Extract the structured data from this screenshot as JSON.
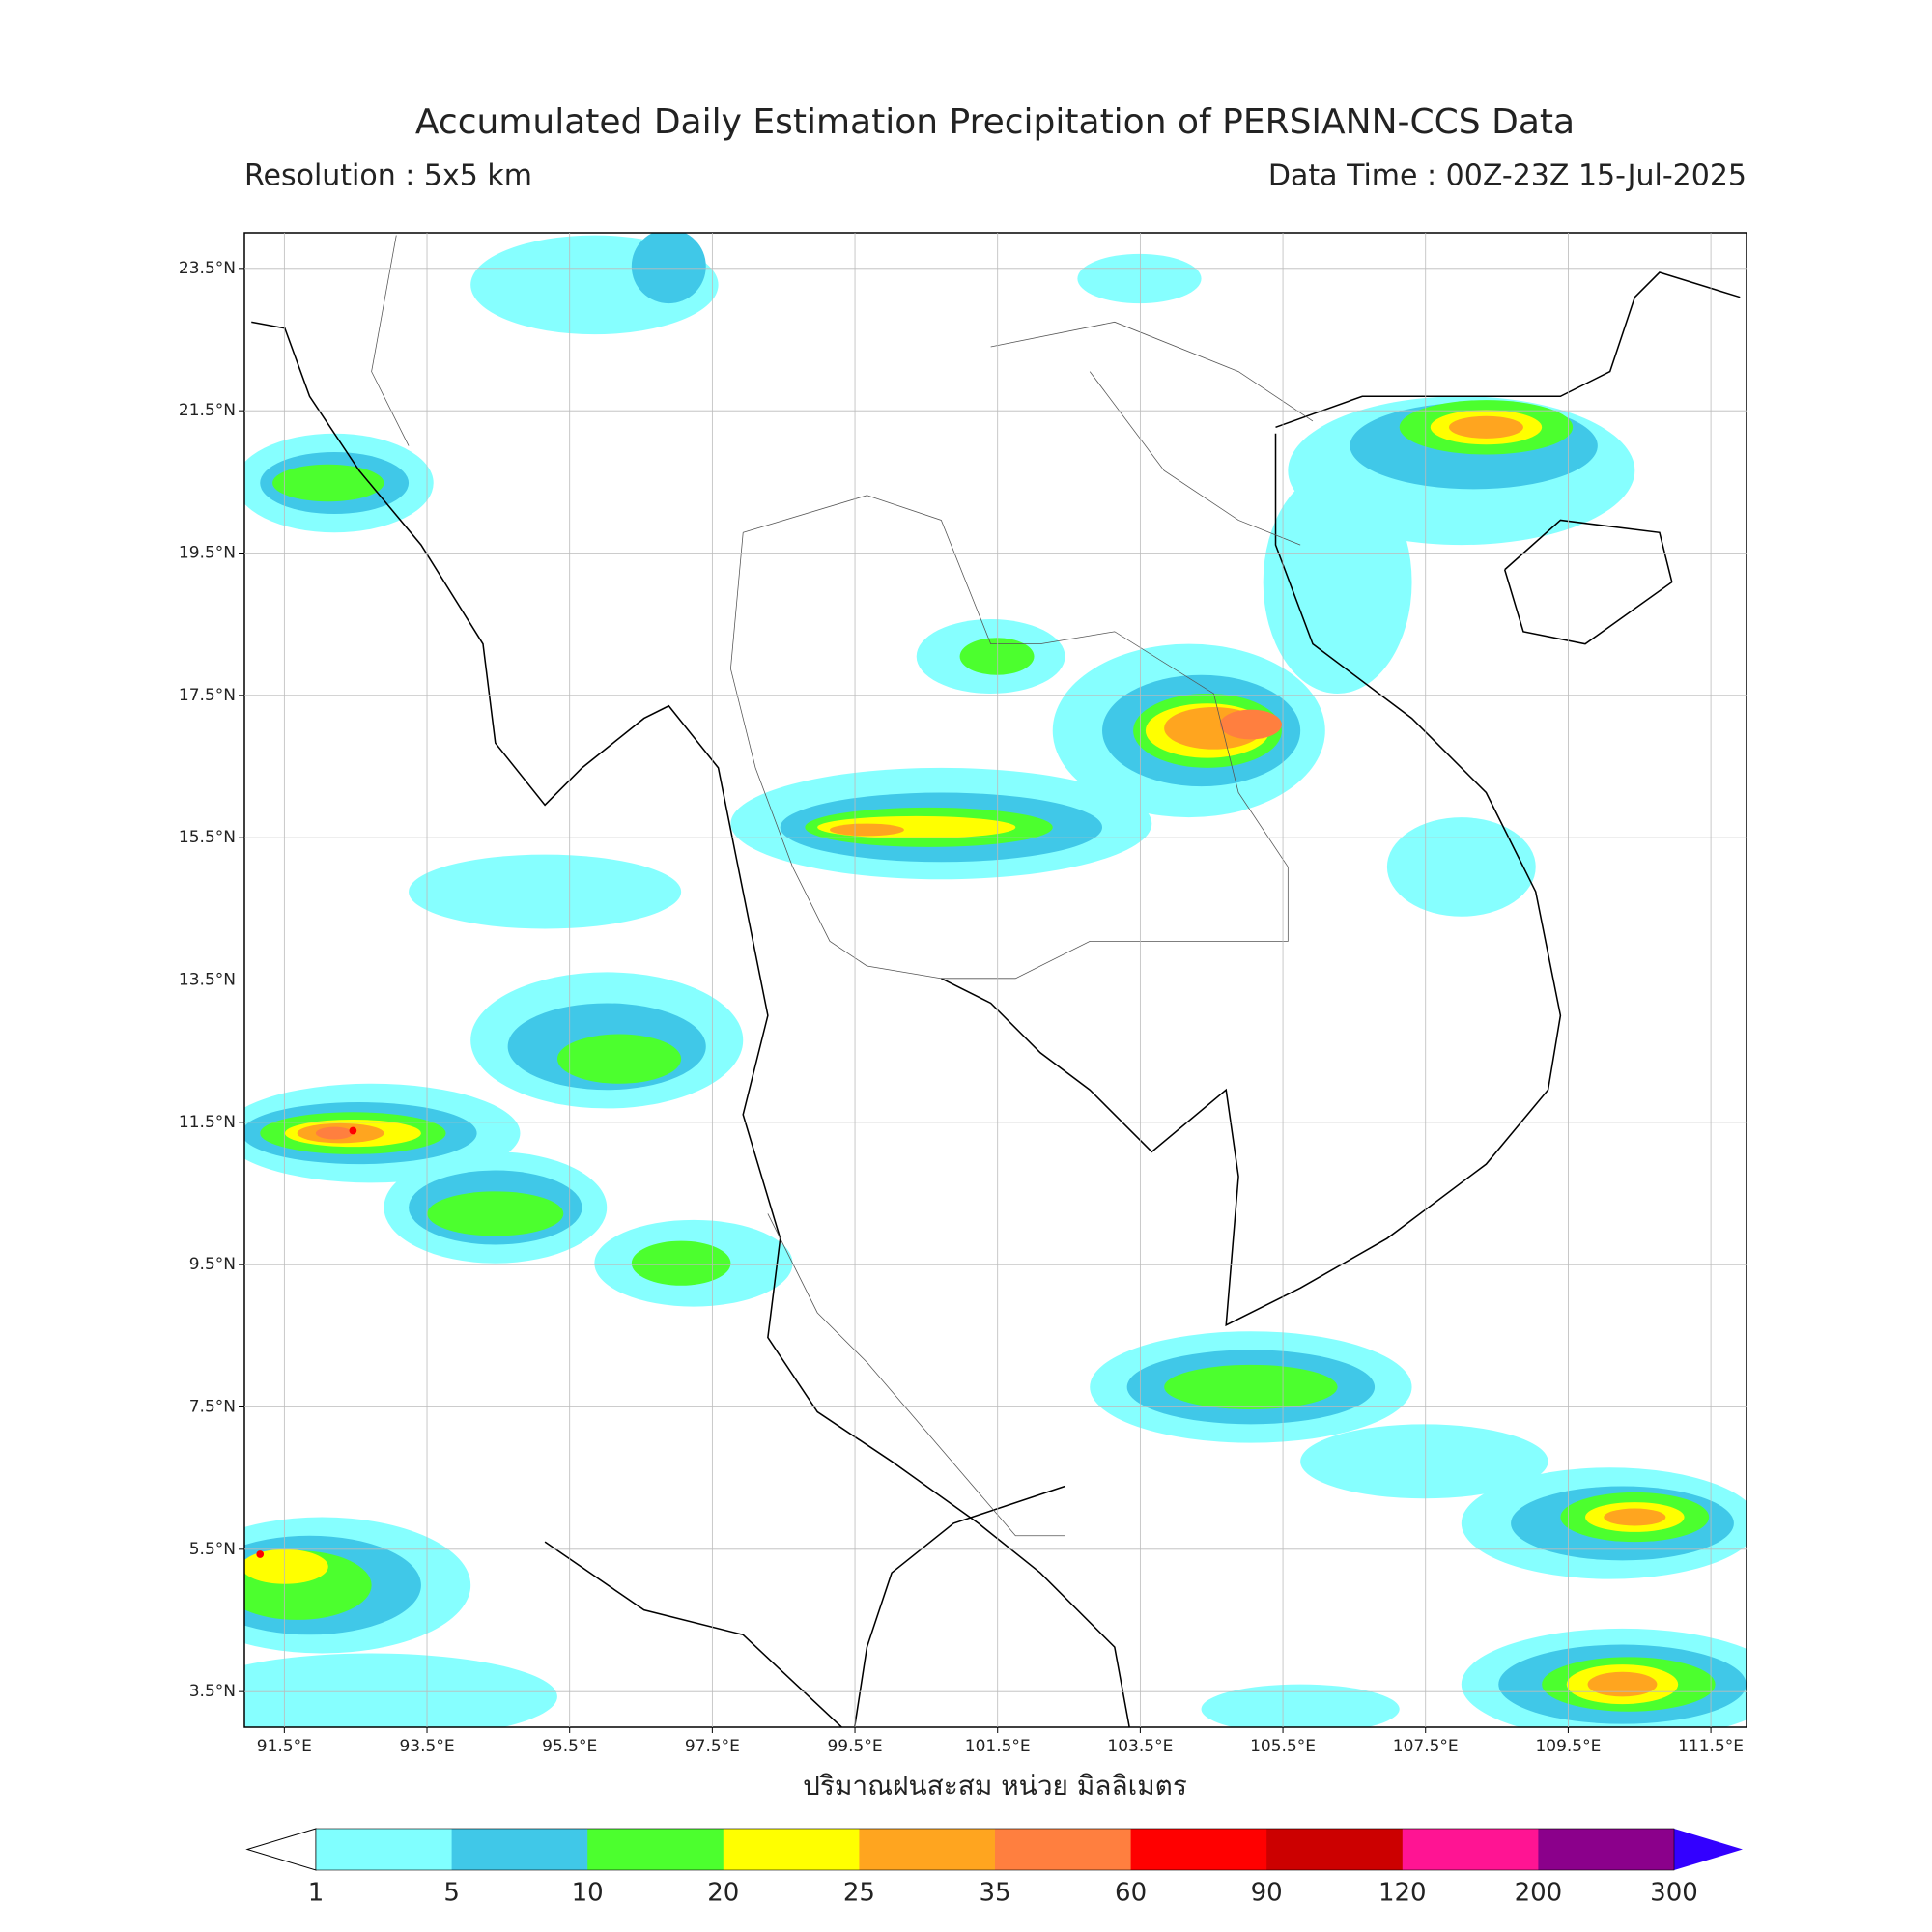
{
  "title": "Accumulated Daily Estimation Precipitation of PERSIANN-CCS Data",
  "resolution": "Resolution : 5x5 km",
  "data_time": "Data Time : 00Z-23Z 15-Jul-2025",
  "map": {
    "xlim": [
      90.94,
      112.0
    ],
    "ylim": [
      3.0,
      24.0
    ],
    "xticks": [
      {
        "value": 91.5,
        "label": "91.5°E"
      },
      {
        "value": 93.5,
        "label": "93.5°E"
      },
      {
        "value": 95.5,
        "label": "95.5°E"
      },
      {
        "value": 97.5,
        "label": "97.5°E"
      },
      {
        "value": 99.5,
        "label": "99.5°E"
      },
      {
        "value": 101.5,
        "label": "101.5°E"
      },
      {
        "value": 103.5,
        "label": "103.5°E"
      },
      {
        "value": 105.5,
        "label": "105.5°E"
      },
      {
        "value": 107.5,
        "label": "107.5°E"
      },
      {
        "value": 109.5,
        "label": "109.5°E"
      },
      {
        "value": 111.5,
        "label": "111.5°E"
      }
    ],
    "yticks": [
      {
        "value": 3.5,
        "label": "3.5°N"
      },
      {
        "value": 5.5,
        "label": "5.5°N"
      },
      {
        "value": 7.5,
        "label": "7.5°N"
      },
      {
        "value": 9.5,
        "label": "9.5°N"
      },
      {
        "value": 11.5,
        "label": "11.5°N"
      },
      {
        "value": 13.5,
        "label": "13.5°N"
      },
      {
        "value": 15.5,
        "label": "15.5°N"
      },
      {
        "value": 17.5,
        "label": "17.5°N"
      },
      {
        "value": 19.5,
        "label": "19.5°N"
      },
      {
        "value": 21.5,
        "label": "21.5°N"
      },
      {
        "value": 23.5,
        "label": "23.5°N"
      }
    ],
    "grid": true
  },
  "xlabel": "ปริมาณฝนสะสม หน่วย มิลลิเมตร",
  "colorbar": {
    "levels": [
      1,
      5,
      10,
      20,
      25,
      35,
      60,
      90,
      120,
      200,
      300
    ],
    "colors": [
      "#80ffff",
      "#40c8e8",
      "#4cff2e",
      "#ffff00",
      "#ffa51f",
      "#ff7f3f",
      "#ff0000",
      "#cc0000",
      "#ff1493",
      "#8b008b"
    ],
    "under_color": "#ffffff",
    "over_color": "#3300ff"
  }
}
